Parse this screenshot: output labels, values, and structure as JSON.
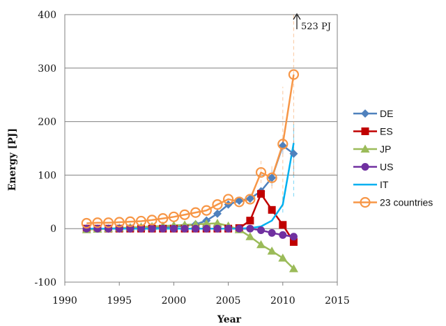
{
  "chart_data": {
    "type": "line",
    "title": "",
    "xlabel": "Year",
    "ylabel": "Energy [PJ]",
    "xlim": [
      1990,
      2015
    ],
    "ylim": [
      -100,
      400
    ],
    "xticks": [
      1990,
      1995,
      2000,
      2005,
      2010,
      2015
    ],
    "yticks": [
      -100,
      0,
      100,
      200,
      300,
      400
    ],
    "grid": "horizontal",
    "legend_position": "right",
    "annotation": {
      "text": "523 PJ",
      "x": 2011.2,
      "y": 400
    },
    "series": [
      {
        "name": "DE",
        "color": "#4f81bd",
        "marker": "diamond",
        "x": [
          1992,
          1993,
          1994,
          1995,
          1996,
          1997,
          1998,
          1999,
          2000,
          2001,
          2002,
          2003,
          2004,
          2005,
          2006,
          2007,
          2008,
          2009,
          2010,
          2011
        ],
        "y": [
          0,
          0,
          0,
          0,
          0,
          1,
          1,
          2,
          3,
          5,
          8,
          15,
          28,
          45,
          52,
          56,
          70,
          95,
          155,
          140
        ]
      },
      {
        "name": "ES",
        "color": "#c00000",
        "marker": "square",
        "x": [
          1992,
          1993,
          1994,
          1995,
          1996,
          1997,
          1998,
          1999,
          2000,
          2001,
          2002,
          2003,
          2004,
          2005,
          2006,
          2007,
          2008,
          2009,
          2010,
          2011
        ],
        "y": [
          0,
          0,
          0,
          0,
          0,
          0,
          0,
          0,
          0,
          0,
          0,
          0,
          0,
          0,
          1,
          15,
          65,
          35,
          7,
          -25
        ]
      },
      {
        "name": "JP",
        "color": "#9bbb59",
        "marker": "triangle",
        "x": [
          1992,
          1993,
          1994,
          1995,
          1996,
          1997,
          1998,
          1999,
          2000,
          2001,
          2002,
          2003,
          2004,
          2005,
          2006,
          2007,
          2008,
          2009,
          2010,
          2011
        ],
        "y": [
          -2,
          -1,
          0,
          1,
          2,
          3,
          4,
          5,
          6,
          7,
          8,
          9,
          10,
          5,
          -2,
          -15,
          -30,
          -42,
          -55,
          -75
        ]
      },
      {
        "name": "US",
        "color": "#7030a0",
        "marker": "circle",
        "x": [
          1992,
          1993,
          1994,
          1995,
          1996,
          1997,
          1998,
          1999,
          2000,
          2001,
          2002,
          2003,
          2004,
          2005,
          2006,
          2007,
          2008,
          2009,
          2010,
          2011
        ],
        "y": [
          0,
          0,
          0,
          0,
          0,
          0,
          0,
          0,
          0,
          0,
          0,
          0,
          0,
          0,
          0,
          0,
          -3,
          -8,
          -12,
          -15
        ]
      },
      {
        "name": "IT",
        "color": "#00b0f0",
        "marker": "none",
        "x": [
          1992,
          1993,
          1994,
          1995,
          1996,
          1997,
          1998,
          1999,
          2000,
          2001,
          2002,
          2003,
          2004,
          2005,
          2006,
          2007,
          2008,
          2009,
          2010,
          2011
        ],
        "y": [
          0,
          0,
          0,
          0,
          0,
          0,
          0,
          0,
          0,
          0,
          0,
          0,
          0,
          0,
          0,
          1,
          4,
          15,
          45,
          160
        ]
      },
      {
        "name": "23 countries",
        "color": "#f79646",
        "marker": "open-circle",
        "x": [
          1992,
          1993,
          1994,
          1995,
          1996,
          1997,
          1998,
          1999,
          2000,
          2001,
          2002,
          2003,
          2004,
          2005,
          2006,
          2007,
          2008,
          2009,
          2010,
          2011
        ],
        "y": [
          10,
          11,
          11,
          12,
          13,
          14,
          16,
          19,
          22,
          26,
          30,
          34,
          45,
          55,
          50,
          55,
          105,
          95,
          158,
          288
        ]
      }
    ]
  }
}
